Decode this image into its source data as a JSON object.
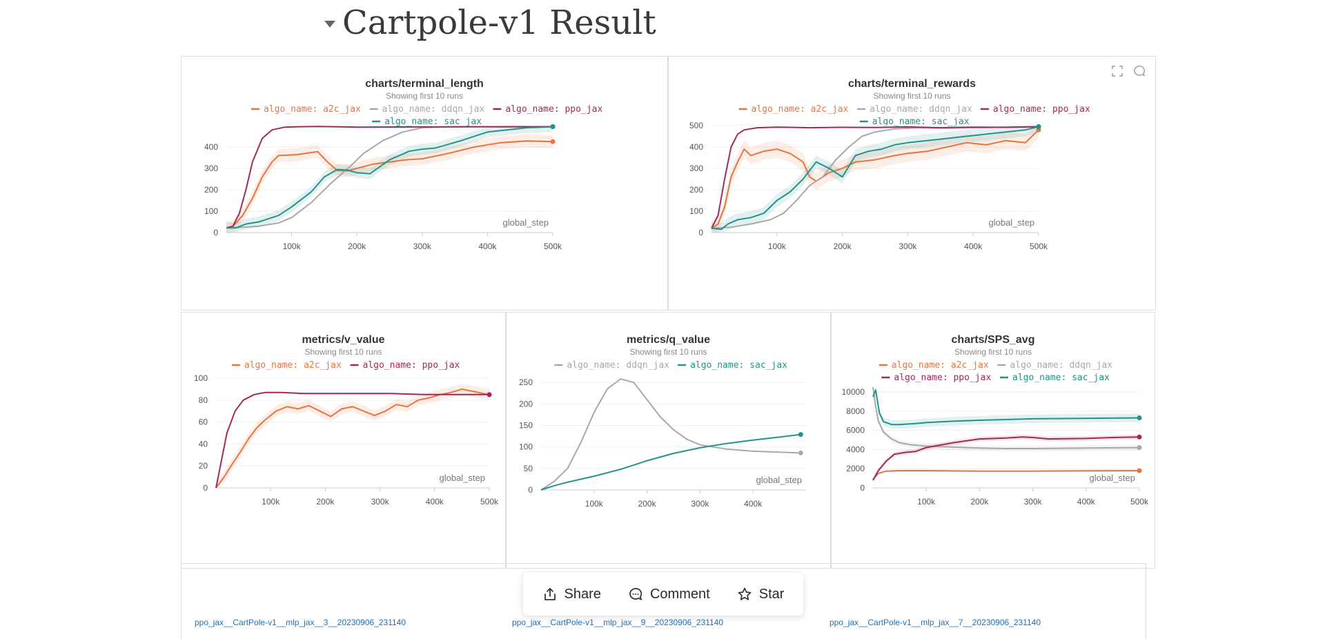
{
  "section": {
    "title": "Cartpole-v1 Result"
  },
  "colors": {
    "a2c": "#e8733d",
    "ddqn": "#a8a8a8",
    "ppo": "#a3275c",
    "sac": "#22938a"
  },
  "actions": {
    "share": "Share",
    "comment": "Comment",
    "star": "Star"
  },
  "run_links": [
    "ppo_jax__CartPole-v1__mlp_jax__3__20230906_231140",
    "ppo_jax__CartPole-v1__mlp_jax__9__20230906_231140",
    "ppo_jax__CartPole-v1__mlp_jax__7__20230906_231140"
  ],
  "chart_data": [
    {
      "type": "line",
      "title": "charts/terminal_length",
      "subtitle": "Showing first 10 runs",
      "xlabel": "global_step",
      "xlim": [
        0,
        500000
      ],
      "ylim": [
        0,
        500
      ],
      "xticks": [
        100000,
        200000,
        300000,
        400000,
        500000
      ],
      "xtick_labels": [
        "100k",
        "200k",
        "300k",
        "400k",
        "500k"
      ],
      "yticks": [
        0,
        100,
        200,
        300,
        400
      ],
      "legend": [
        "algo_name: a2c_jax",
        "algo_name: ddqn_jax",
        "algo_name: ppo_jax",
        "algo_name: sac_jax"
      ],
      "series": [
        {
          "name": "algo_name: a2c_jax",
          "key": "a2c",
          "x": [
            0,
            10000,
            25000,
            40000,
            55000,
            70000,
            80000,
            95000,
            110000,
            125000,
            140000,
            155000,
            170000,
            185000,
            200000,
            225000,
            250000,
            275000,
            300000,
            340000,
            380000,
            420000,
            460000,
            500000
          ],
          "y": [
            22,
            28,
            80,
            160,
            260,
            330,
            360,
            362,
            365,
            372,
            378,
            330,
            290,
            288,
            300,
            320,
            330,
            340,
            345,
            370,
            400,
            420,
            428,
            425
          ],
          "band": 30
        },
        {
          "name": "algo_name: ddqn_jax",
          "key": "ddqn",
          "x": [
            0,
            20000,
            50000,
            80000,
            100000,
            130000,
            160000,
            190000,
            210000,
            240000,
            270000,
            300000,
            340000,
            380000,
            420000,
            460000,
            500000
          ],
          "y": [
            22,
            24,
            30,
            45,
            70,
            140,
            230,
            310,
            370,
            430,
            470,
            490,
            495,
            495,
            494,
            494,
            495
          ],
          "band": 0
        },
        {
          "name": "algo_name: ppo_jax",
          "key": "ppo",
          "x": [
            0,
            10000,
            20000,
            30000,
            40000,
            55000,
            70000,
            90000,
            110000,
            140000,
            200000,
            300000,
            400000,
            500000
          ],
          "y": [
            22,
            30,
            90,
            200,
            330,
            440,
            480,
            493,
            495,
            496,
            493,
            494,
            495,
            495
          ],
          "band": 0
        },
        {
          "name": "algo_name: sac_jax",
          "key": "sac",
          "x": [
            0,
            15000,
            30000,
            50000,
            80000,
            100000,
            130000,
            150000,
            170000,
            185000,
            200000,
            220000,
            250000,
            280000,
            300000,
            320000,
            360000,
            400000,
            430000,
            460000,
            480000,
            500000
          ],
          "y": [
            22,
            22,
            40,
            50,
            80,
            120,
            190,
            260,
            295,
            292,
            280,
            275,
            340,
            380,
            390,
            395,
            430,
            470,
            480,
            490,
            492,
            495
          ],
          "band": 25
        }
      ]
    },
    {
      "type": "line",
      "title": "charts/terminal_rewards",
      "subtitle": "Showing first 10 runs",
      "xlabel": "global_step",
      "xlim": [
        0,
        500000
      ],
      "ylim": [
        0,
        500
      ],
      "xticks": [
        100000,
        200000,
        300000,
        400000,
        500000
      ],
      "xtick_labels": [
        "100k",
        "200k",
        "300k",
        "400k",
        "500k"
      ],
      "yticks": [
        0,
        100,
        200,
        300,
        400,
        500
      ],
      "legend": [
        "algo_name: a2c_jax",
        "algo_name: ddqn_jax",
        "algo_name: ppo_jax",
        "algo_name: sac_jax"
      ],
      "series": [
        {
          "name": "algo_name: a2c_jax",
          "key": "a2c",
          "x": [
            0,
            10000,
            20000,
            30000,
            40000,
            50000,
            60000,
            80000,
            100000,
            120000,
            140000,
            150000,
            160000,
            180000,
            200000,
            220000,
            250000,
            280000,
            300000,
            330000,
            360000,
            390000,
            420000,
            450000,
            480000,
            500000
          ],
          "y": [
            20,
            40,
            120,
            260,
            330,
            390,
            360,
            380,
            390,
            370,
            330,
            260,
            240,
            280,
            300,
            330,
            340,
            360,
            370,
            380,
            400,
            420,
            410,
            430,
            420,
            480
          ],
          "band": 40
        },
        {
          "name": "algo_name: ddqn_jax",
          "key": "ddqn",
          "x": [
            0,
            30000,
            60000,
            90000,
            110000,
            130000,
            150000,
            170000,
            190000,
            210000,
            230000,
            250000,
            280000,
            320000,
            360000,
            400000,
            440000,
            500000
          ],
          "y": [
            20,
            25,
            40,
            60,
            90,
            150,
            220,
            260,
            340,
            400,
            450,
            470,
            485,
            490,
            488,
            490,
            492,
            495
          ],
          "band": 0
        },
        {
          "name": "algo_name: ppo_jax",
          "key": "ppo",
          "x": [
            0,
            10000,
            20000,
            30000,
            40000,
            50000,
            70000,
            100000,
            150000,
            200000,
            250000,
            300000,
            350000,
            400000,
            450000,
            500000
          ],
          "y": [
            20,
            80,
            250,
            400,
            460,
            480,
            490,
            493,
            490,
            492,
            491,
            494,
            490,
            493,
            492,
            495
          ],
          "band": 0
        },
        {
          "name": "algo_name: sac_jax",
          "key": "sac",
          "x": [
            0,
            15000,
            25000,
            40000,
            60000,
            80000,
            100000,
            120000,
            140000,
            160000,
            180000,
            200000,
            220000,
            240000,
            260000,
            280000,
            300000,
            330000,
            360000,
            390000,
            420000,
            450000,
            480000,
            500000
          ],
          "y": [
            20,
            15,
            40,
            60,
            70,
            90,
            150,
            190,
            250,
            330,
            300,
            260,
            360,
            380,
            390,
            410,
            420,
            430,
            440,
            450,
            460,
            470,
            480,
            495
          ],
          "band": 30
        }
      ]
    },
    {
      "type": "line",
      "title": "metrics/v_value",
      "subtitle": "Showing first 10 runs",
      "xlabel": "global_step",
      "xlim": [
        0,
        500000
      ],
      "ylim": [
        0,
        100
      ],
      "xticks": [
        100000,
        200000,
        300000,
        400000,
        500000
      ],
      "xtick_labels": [
        "100k",
        "200k",
        "300k",
        "400k",
        "500k"
      ],
      "yticks": [
        0,
        20,
        40,
        60,
        80,
        100
      ],
      "legend": [
        "algo_name: a2c_jax",
        "algo_name: ppo_jax"
      ],
      "series": [
        {
          "name": "algo_name: a2c_jax",
          "key": "a2c",
          "x": [
            0,
            15000,
            30000,
            45000,
            60000,
            75000,
            90000,
            110000,
            130000,
            150000,
            170000,
            190000,
            210000,
            230000,
            250000,
            270000,
            290000,
            310000,
            330000,
            350000,
            370000,
            390000,
            410000,
            430000,
            450000,
            470000,
            490000,
            500000
          ],
          "y": [
            0,
            10,
            22,
            33,
            45,
            55,
            62,
            70,
            74,
            72,
            75,
            70,
            65,
            72,
            74,
            70,
            66,
            70,
            76,
            74,
            80,
            82,
            85,
            87,
            90,
            88,
            86,
            85
          ],
          "band": 5
        },
        {
          "name": "algo_name: ppo_jax",
          "key": "ppo",
          "x": [
            0,
            10000,
            20000,
            35000,
            50000,
            70000,
            90000,
            120000,
            160000,
            200000,
            260000,
            320000,
            380000,
            440000,
            500000
          ],
          "y": [
            0,
            25,
            50,
            70,
            80,
            85,
            87,
            87,
            86,
            86,
            86,
            86,
            85,
            85,
            85
          ],
          "band": 0
        }
      ]
    },
    {
      "type": "line",
      "title": "metrics/q_value",
      "subtitle": "Showing first 10 runs",
      "xlabel": "global_step",
      "xlim": [
        0,
        500000
      ],
      "ylim": [
        0,
        260
      ],
      "xticks": [
        100000,
        200000,
        300000,
        400000
      ],
      "xtick_labels": [
        "100k",
        "200k",
        "300k",
        "400k"
      ],
      "yticks": [
        0,
        50,
        100,
        150,
        200,
        250
      ],
      "legend": [
        "algo_name: ddqn_jax",
        "algo_name: sac_jax"
      ],
      "series": [
        {
          "name": "algo_name: ddqn_jax",
          "key": "ddqn",
          "x": [
            0,
            25000,
            50000,
            75000,
            100000,
            125000,
            150000,
            175000,
            200000,
            225000,
            250000,
            275000,
            300000,
            350000,
            400000,
            450000,
            490000
          ],
          "y": [
            0,
            20,
            50,
            110,
            180,
            235,
            258,
            250,
            210,
            170,
            140,
            118,
            105,
            95,
            90,
            88,
            86
          ],
          "band": 0
        },
        {
          "name": "algo_name: sac_jax",
          "key": "sac",
          "x": [
            0,
            25000,
            50000,
            75000,
            100000,
            125000,
            150000,
            175000,
            200000,
            250000,
            300000,
            350000,
            400000,
            450000,
            490000
          ],
          "y": [
            0,
            10,
            18,
            25,
            32,
            40,
            48,
            58,
            68,
            85,
            98,
            108,
            116,
            123,
            129
          ],
          "band": 0
        }
      ]
    },
    {
      "type": "line",
      "title": "charts/SPS_avg",
      "subtitle": "Showing first 10 runs",
      "xlabel": "global_step",
      "xlim": [
        0,
        500000
      ],
      "ylim": [
        0,
        10500
      ],
      "xticks": [
        100000,
        200000,
        300000,
        400000,
        500000
      ],
      "xtick_labels": [
        "100k",
        "200k",
        "300k",
        "400k",
        "500k"
      ],
      "yticks": [
        0,
        2000,
        4000,
        6000,
        8000,
        10000
      ],
      "legend": [
        "algo_name: a2c_jax",
        "algo_name: ddqn_jax",
        "algo_name: ppo_jax",
        "algo_name: sac_jax"
      ],
      "series": [
        {
          "name": "algo_name: a2c_jax",
          "key": "a2c",
          "x": [
            0,
            10000,
            25000,
            50000,
            100000,
            200000,
            300000,
            400000,
            500000
          ],
          "y": [
            900,
            1500,
            1750,
            1800,
            1800,
            1750,
            1750,
            1780,
            1800
          ],
          "band": 0
        },
        {
          "name": "algo_name: ddqn_jax",
          "key": "ddqn",
          "x": [
            0,
            5000,
            10000,
            20000,
            35000,
            50000,
            70000,
            100000,
            150000,
            200000,
            250000,
            300000,
            400000,
            500000
          ],
          "y": [
            10500,
            8500,
            7000,
            5800,
            5100,
            4700,
            4500,
            4350,
            4250,
            4150,
            4100,
            4100,
            4150,
            4200
          ],
          "band": 300
        },
        {
          "name": "algo_name: ppo_jax",
          "key": "ppo",
          "x": [
            0,
            10000,
            25000,
            40000,
            60000,
            80000,
            100000,
            150000,
            200000,
            250000,
            280000,
            300000,
            330000,
            400000,
            450000,
            500000
          ],
          "y": [
            800,
            1800,
            2800,
            3500,
            3700,
            3800,
            4200,
            4700,
            5100,
            5200,
            5300,
            5250,
            5100,
            5150,
            5250,
            5300
          ],
          "band": 250
        },
        {
          "name": "algo_name: sac_jax",
          "key": "sac",
          "x": [
            0,
            5000,
            12000,
            20000,
            35000,
            50000,
            80000,
            100000,
            150000,
            200000,
            300000,
            400000,
            500000
          ],
          "y": [
            9500,
            10200,
            7800,
            6900,
            6600,
            6600,
            6700,
            6800,
            6950,
            7050,
            7200,
            7250,
            7300
          ],
          "band": 450
        }
      ]
    }
  ]
}
